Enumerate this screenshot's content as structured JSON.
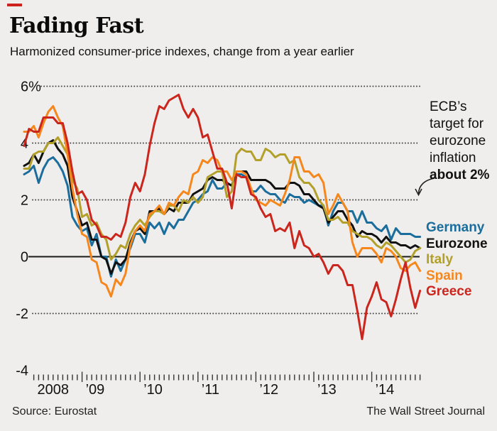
{
  "header": {
    "title": "Fading Fast",
    "subtitle": "Harmonized consumer-price indexes, change from a year earlier"
  },
  "annotation": {
    "lines": [
      "ECB’s",
      "target for",
      "eurozone",
      "inflation",
      "about 2%"
    ]
  },
  "footer": {
    "source": "Source: Eurostat",
    "credit": "The Wall Street Journal"
  },
  "colors": {
    "background": "#efeeec",
    "kicker_dash": "#cc241c",
    "germany": "#1b6d9c",
    "eurozone": "#111111",
    "italy": "#b3a02b",
    "spain": "#f6871d",
    "greece": "#cb261d"
  },
  "chart_data": {
    "type": "line",
    "title": "Fading Fast",
    "subtitle": "Harmonized consumer-price indexes, change from a year earlier",
    "x_unit": "month",
    "x_start": "2008-01",
    "x_end": "2014-11",
    "ylim": [
      -4,
      6
    ],
    "grid": "dotted horizontal at 6, 4, 2, -2; solid line at 0",
    "legend_position": "right of line ends",
    "y_ticks": [
      {
        "label": "6%",
        "value": 6
      },
      {
        "label": "4",
        "value": 4
      },
      {
        "label": "2",
        "value": 2
      },
      {
        "label": "0",
        "value": 0
      },
      {
        "label": "-2",
        "value": -2
      },
      {
        "label": "-4",
        "value": -4
      }
    ],
    "y_gridlines_dotted": [
      6,
      4,
      2,
      -2
    ],
    "zero_line": 0,
    "x_ticks": [
      {
        "label": "2008",
        "month_index": 0
      },
      {
        "label": "’09",
        "month_index": 12
      },
      {
        "label": "’10",
        "month_index": 24
      },
      {
        "label": "’11",
        "month_index": 36
      },
      {
        "label": "’12",
        "month_index": 48
      },
      {
        "label": "’13",
        "month_index": 60
      },
      {
        "label": "’14",
        "month_index": 72
      }
    ],
    "annotation_text": "ECB’s target for eurozone inflation about 2%",
    "series": [
      {
        "name": "Germany",
        "color": "#1b6d9c",
        "values": [
          2.9,
          3.0,
          3.2,
          2.6,
          3.1,
          3.4,
          3.5,
          3.3,
          3.0,
          2.5,
          1.4,
          1.1,
          0.9,
          1.0,
          0.4,
          0.8,
          0.0,
          0.0,
          -0.7,
          -0.1,
          -0.5,
          -0.1,
          0.3,
          0.8,
          0.8,
          0.5,
          1.2,
          1.0,
          1.2,
          0.8,
          1.2,
          1.0,
          1.3,
          1.3,
          1.6,
          1.9,
          2.0,
          2.2,
          2.3,
          2.7,
          2.4,
          2.4,
          2.6,
          2.5,
          2.9,
          2.9,
          2.8,
          2.3,
          2.3,
          2.5,
          2.3,
          2.2,
          2.2,
          2.0,
          1.9,
          2.2,
          2.1,
          2.1,
          1.9,
          2.0,
          1.9,
          1.8,
          1.8,
          1.1,
          1.6,
          1.9,
          1.9,
          1.6,
          1.6,
          1.2,
          1.6,
          1.2,
          1.2,
          1.0,
          0.9,
          1.1,
          0.6,
          1.0,
          0.8,
          0.8,
          0.8,
          0.7,
          0.7
        ]
      },
      {
        "name": "Eurozone",
        "color": "#111111",
        "values": [
          3.2,
          3.3,
          3.6,
          3.3,
          3.7,
          4.0,
          4.1,
          3.8,
          3.6,
          3.2,
          2.1,
          1.6,
          1.1,
          1.2,
          0.6,
          0.6,
          0.0,
          -0.1,
          -0.6,
          -0.2,
          -0.3,
          -0.1,
          0.5,
          0.9,
          1.0,
          0.8,
          1.6,
          1.6,
          1.7,
          1.5,
          1.7,
          1.6,
          1.9,
          1.9,
          1.9,
          2.2,
          2.3,
          2.4,
          2.7,
          2.8,
          2.7,
          2.7,
          2.6,
          2.5,
          3.0,
          3.0,
          3.0,
          2.7,
          2.7,
          2.7,
          2.7,
          2.6,
          2.4,
          2.4,
          2.4,
          2.6,
          2.6,
          2.5,
          2.2,
          2.2,
          2.0,
          1.8,
          1.7,
          1.2,
          1.4,
          1.6,
          1.6,
          1.3,
          1.1,
          0.7,
          0.9,
          0.8,
          0.8,
          0.7,
          0.5,
          0.7,
          0.5,
          0.5,
          0.4,
          0.4,
          0.3,
          0.4,
          0.3
        ]
      },
      {
        "name": "Italy",
        "color": "#b3a02b",
        "values": [
          3.1,
          3.1,
          3.6,
          3.7,
          3.7,
          4.0,
          4.0,
          4.2,
          3.9,
          3.6,
          2.7,
          2.4,
          1.4,
          1.5,
          1.1,
          1.2,
          0.8,
          0.6,
          -0.1,
          0.1,
          0.4,
          0.3,
          0.8,
          1.1,
          1.3,
          1.1,
          1.4,
          1.6,
          1.6,
          1.5,
          1.8,
          1.8,
          1.6,
          2.0,
          1.9,
          2.1,
          1.9,
          2.1,
          2.8,
          2.9,
          3.0,
          3.0,
          2.1,
          2.3,
          3.6,
          3.8,
          3.7,
          3.7,
          3.4,
          3.4,
          3.8,
          3.7,
          3.5,
          3.6,
          3.6,
          3.3,
          3.4,
          2.8,
          2.6,
          2.6,
          2.4,
          2.0,
          1.8,
          1.3,
          1.3,
          1.4,
          1.2,
          1.2,
          0.9,
          0.8,
          0.7,
          0.7,
          0.6,
          0.4,
          0.3,
          0.5,
          0.4,
          0.2,
          0.0,
          -0.2,
          -0.1,
          0.2,
          0.3
        ]
      },
      {
        "name": "Spain",
        "color": "#f6871d",
        "values": [
          4.4,
          4.4,
          4.6,
          4.2,
          4.7,
          5.1,
          5.3,
          4.9,
          4.6,
          3.6,
          2.4,
          1.5,
          0.8,
          0.7,
          -0.1,
          -0.2,
          -0.9,
          -1.0,
          -1.4,
          -0.8,
          -1.0,
          -0.6,
          0.4,
          0.9,
          1.1,
          0.9,
          1.5,
          1.6,
          1.8,
          1.5,
          1.9,
          1.8,
          2.1,
          2.3,
          2.2,
          2.9,
          3.0,
          3.4,
          3.3,
          3.5,
          3.4,
          3.0,
          3.0,
          2.7,
          3.0,
          3.0,
          2.9,
          2.4,
          2.0,
          1.9,
          1.8,
          2.0,
          1.9,
          1.8,
          2.2,
          2.7,
          3.5,
          3.5,
          3.0,
          3.0,
          2.8,
          2.9,
          2.6,
          1.5,
          1.8,
          2.2,
          1.9,
          1.6,
          0.5,
          0.0,
          0.3,
          0.3,
          0.3,
          0.1,
          -0.2,
          0.3,
          0.2,
          0.0,
          -0.4,
          -0.5,
          -0.3,
          -0.2,
          -0.5
        ]
      },
      {
        "name": "Greece",
        "color": "#cb261d",
        "values": [
          3.9,
          4.5,
          4.4,
          4.4,
          4.9,
          4.9,
          4.9,
          4.7,
          4.7,
          4.0,
          3.0,
          2.2,
          2.3,
          2.0,
          1.3,
          1.1,
          0.7,
          0.7,
          0.6,
          0.8,
          0.7,
          1.2,
          2.1,
          2.6,
          2.3,
          2.9,
          3.9,
          4.7,
          5.3,
          5.2,
          5.5,
          5.6,
          5.7,
          5.2,
          4.9,
          5.2,
          4.9,
          4.2,
          4.3,
          3.7,
          3.1,
          3.1,
          2.6,
          1.7,
          2.9,
          2.8,
          2.8,
          2.2,
          2.1,
          1.7,
          1.4,
          1.5,
          0.9,
          1.0,
          0.9,
          1.2,
          0.3,
          0.9,
          0.4,
          0.3,
          0.0,
          0.1,
          -0.2,
          -0.6,
          -0.3,
          -0.3,
          -0.5,
          -1.0,
          -1.0,
          -1.9,
          -2.9,
          -1.8,
          -1.4,
          -0.9,
          -1.5,
          -1.6,
          -2.1,
          -1.5,
          -0.8,
          -0.2,
          -1.1,
          -1.8,
          -1.2
        ]
      }
    ]
  }
}
